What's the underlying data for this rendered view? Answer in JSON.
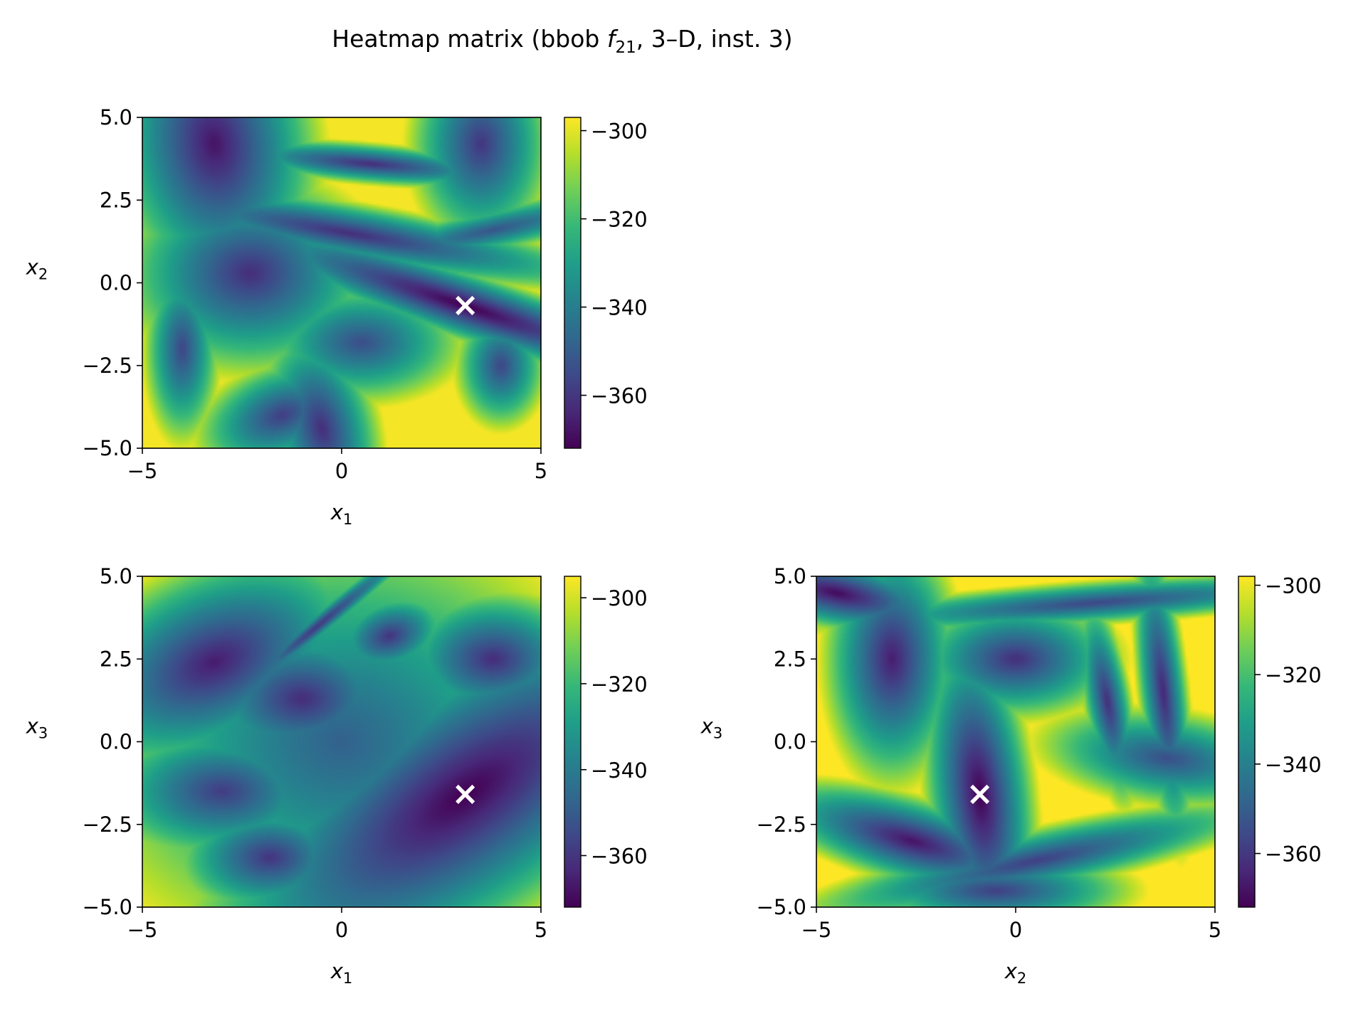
{
  "figure": {
    "title_prefix": "Heatmap matrix (bbob ",
    "title_fn": "f",
    "title_sub": "21",
    "title_suffix": ", 3–D, inst. 3)"
  },
  "colormap": {
    "name": "viridis",
    "stops": [
      "#440154",
      "#482878",
      "#3e4a89",
      "#31688e",
      "#26828e",
      "#1f9e89",
      "#35b779",
      "#6ece58",
      "#b5de2b",
      "#fde725"
    ]
  },
  "marker": {
    "symbol": "×",
    "color": "#ffffff"
  },
  "chart_data": [
    {
      "type": "heatmap",
      "id": "x1-x2",
      "xlabel": "x",
      "xlabel_sub": "1",
      "ylabel": "x",
      "ylabel_sub": "2",
      "xlim": [
        -5,
        5
      ],
      "ylim": [
        -5,
        5
      ],
      "xticks": [
        -5,
        0,
        5
      ],
      "xtick_labels": [
        "−5",
        "0",
        "5"
      ],
      "yticks": [
        -5,
        -2.5,
        0,
        2.5,
        5
      ],
      "ytick_labels": [
        "−5.0",
        "−2.5",
        "0.0",
        "2.5",
        "5.0"
      ],
      "vmin": -372,
      "vmax": -297,
      "cbar_ticks": [
        -300,
        -320,
        -340,
        -360
      ],
      "cbar_tick_labels": [
        "−300",
        "−320",
        "−340",
        "−360"
      ],
      "optimum": [
        3.1,
        -0.7
      ],
      "basins": [
        [
          3.1,
          -0.7,
          3.2,
          0.45,
          -22,
          -372
        ],
        [
          -3.2,
          4.2,
          1.2,
          2.2,
          5,
          -368
        ],
        [
          -2.3,
          0.3,
          1.6,
          1.5,
          0,
          -362
        ],
        [
          0.2,
          1.5,
          3.4,
          0.45,
          -12,
          -362
        ],
        [
          0.7,
          3.6,
          2.0,
          0.3,
          -6,
          -362
        ],
        [
          3.5,
          4.2,
          0.9,
          1.6,
          0,
          -360
        ],
        [
          -0.5,
          -4.4,
          0.7,
          1.6,
          10,
          -362
        ],
        [
          0.5,
          -1.8,
          1.4,
          1.0,
          0,
          -354
        ],
        [
          -1.5,
          -4.0,
          1.2,
          0.8,
          30,
          -358
        ],
        [
          4.0,
          -2.5,
          0.6,
          1.0,
          0,
          -356
        ],
        [
          -4.0,
          -2.0,
          0.5,
          1.5,
          0,
          -356
        ],
        [
          3.8,
          1.6,
          2.5,
          0.4,
          15,
          -352
        ]
      ]
    },
    {
      "type": "heatmap",
      "id": "x1-x3",
      "xlabel": "x",
      "xlabel_sub": "1",
      "ylabel": "x",
      "ylabel_sub": "3",
      "xlim": [
        -5,
        5
      ],
      "ylim": [
        -5,
        5
      ],
      "xticks": [
        -5,
        0,
        5
      ],
      "xtick_labels": [
        "−5",
        "0",
        "5"
      ],
      "yticks": [
        -5,
        -2.5,
        0,
        2.5,
        5
      ],
      "ytick_labels": [
        "−5.0",
        "−2.5",
        "0.0",
        "2.5",
        "5.0"
      ],
      "vmin": -372,
      "vmax": -295,
      "cbar_ticks": [
        -300,
        -320,
        -340,
        -360
      ],
      "cbar_tick_labels": [
        "−300",
        "−320",
        "−340",
        "−360"
      ],
      "optimum": [
        3.1,
        -1.6
      ],
      "basins": [
        [
          3.1,
          -1.6,
          3.8,
          1.6,
          42,
          -372
        ],
        [
          -3.2,
          2.4,
          2.0,
          1.3,
          35,
          -366
        ],
        [
          -1.0,
          1.3,
          1.5,
          1.2,
          0,
          -362
        ],
        [
          3.8,
          2.5,
          1.2,
          1.0,
          0,
          -362
        ],
        [
          -3.0,
          -1.5,
          1.6,
          1.1,
          0,
          -358
        ],
        [
          -1.8,
          -3.5,
          1.2,
          0.9,
          0,
          -360
        ],
        [
          1.2,
          3.2,
          0.8,
          0.6,
          30,
          -360
        ],
        [
          -0.6,
          3.5,
          2.2,
          0.18,
          45,
          -360
        ],
        [
          0.0,
          0.0,
          3.8,
          3.8,
          0,
          -348
        ]
      ]
    },
    {
      "type": "heatmap",
      "id": "x2-x3",
      "xlabel": "x",
      "xlabel_sub": "2",
      "ylabel": "x",
      "ylabel_sub": "3",
      "xlim": [
        -5,
        5
      ],
      "ylim": [
        -5,
        5
      ],
      "xticks": [
        -5,
        0,
        5
      ],
      "xtick_labels": [
        "−5",
        "0",
        "5"
      ],
      "yticks": [
        -5,
        -2.5,
        0,
        2.5,
        5
      ],
      "ytick_labels": [
        "−5.0",
        "−2.5",
        "0.0",
        "2.5",
        "5.0"
      ],
      "vmin": -372,
      "vmax": -298,
      "cbar_ticks": [
        -300,
        -320,
        -340,
        -360
      ],
      "cbar_tick_labels": [
        "−300",
        "−320",
        "−340",
        "−360"
      ],
      "optimum": [
        -0.9,
        -1.6
      ],
      "basins": [
        [
          -0.9,
          -1.6,
          0.6,
          2.3,
          5,
          -372
        ],
        [
          -3.1,
          2.5,
          0.8,
          1.8,
          0,
          -366
        ],
        [
          -4.5,
          4.5,
          1.5,
          0.5,
          -15,
          -370
        ],
        [
          0.0,
          2.5,
          1.3,
          0.9,
          0,
          -362
        ],
        [
          -2.6,
          -3.0,
          1.8,
          0.6,
          -20,
          -368
        ],
        [
          0.5,
          -3.6,
          3.2,
          0.5,
          15,
          -358
        ],
        [
          2.3,
          1.2,
          0.3,
          1.6,
          8,
          -362
        ],
        [
          3.7,
          1.5,
          0.3,
          2.3,
          5,
          -364
        ],
        [
          3.8,
          -0.5,
          1.8,
          0.8,
          -10,
          -354
        ],
        [
          2.0,
          4.2,
          4.0,
          0.35,
          5,
          -356
        ],
        [
          -0.5,
          -4.5,
          1.8,
          0.6,
          0,
          -358
        ]
      ]
    }
  ]
}
